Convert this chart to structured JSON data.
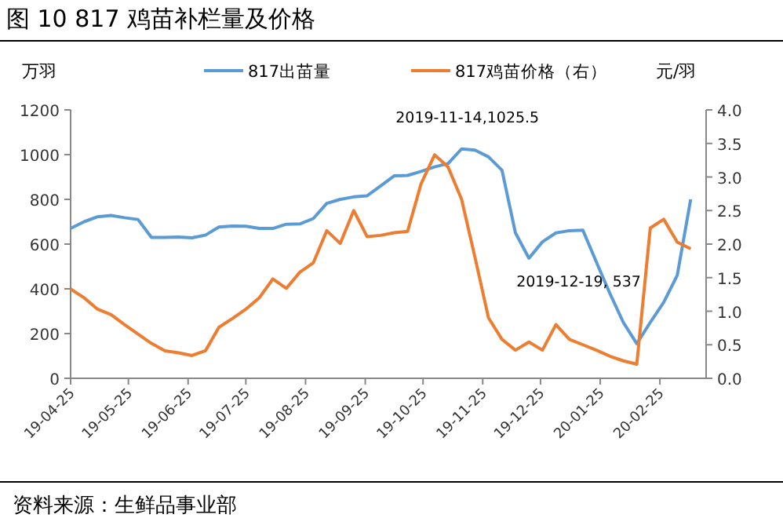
{
  "chart_data": {
    "type": "line",
    "title": "图 10 817 鸡苗补栏量及价格",
    "ylabel": "万羽",
    "y2label": "元/羽",
    "x": [
      "2019-04-25",
      "2019-05-02",
      "2019-05-09",
      "2019-05-16",
      "2019-05-23",
      "2019-05-30",
      "2019-06-06",
      "2019-06-13",
      "2019-06-20",
      "2019-06-27",
      "2019-07-04",
      "2019-07-11",
      "2019-07-18",
      "2019-07-25",
      "2019-08-01",
      "2019-08-08",
      "2019-08-15",
      "2019-08-22",
      "2019-08-29",
      "2019-09-05",
      "2019-09-12",
      "2019-09-19",
      "2019-09-26",
      "2019-10-03",
      "2019-10-10",
      "2019-10-17",
      "2019-10-24",
      "2019-10-31",
      "2019-11-07",
      "2019-11-14",
      "2019-11-21",
      "2019-11-28",
      "2019-12-05",
      "2019-12-12",
      "2019-12-19",
      "2019-12-26",
      "2020-01-02",
      "2020-01-09",
      "2020-01-16",
      "2020-01-23",
      "2020-01-30",
      "2020-02-06",
      "2020-02-13",
      "2020-02-20",
      "2020-02-27",
      "2020-03-05",
      "2020-03-12"
    ],
    "series": [
      {
        "name": "817出苗量",
        "color": "#5b9bd5",
        "values": [
          670,
          700,
          722,
          728,
          718,
          710,
          630,
          630,
          632,
          628,
          640,
          676,
          681,
          680,
          670,
          670,
          689,
          690,
          714,
          782,
          800,
          811,
          816,
          860,
          905,
          907,
          925,
          945,
          960,
          1025.5,
          1020,
          990,
          930,
          650,
          537,
          610,
          650,
          660,
          662,
          520,
          380,
          250,
          155,
          250,
          340,
          460,
          800
        ]
      },
      {
        "name": "817鸡苗价格（右）",
        "color": "#ed7d31",
        "axis": "y2",
        "values": [
          1.33,
          1.2,
          1.03,
          0.95,
          0.8,
          0.66,
          0.52,
          0.41,
          0.38,
          0.34,
          0.41,
          0.76,
          0.89,
          1.03,
          1.2,
          1.48,
          1.34,
          1.58,
          1.72,
          2.2,
          2.01,
          2.5,
          2.11,
          2.13,
          2.17,
          2.19,
          2.9,
          3.33,
          3.15,
          2.67,
          1.8,
          0.9,
          0.58,
          0.42,
          0.54,
          0.42,
          0.8,
          0.58,
          0.5,
          0.42,
          0.33,
          0.26,
          0.21,
          2.24,
          2.37,
          2.03,
          1.93
        ]
      }
    ],
    "xlim": [
      "2019-04-25",
      "2020-03-20"
    ],
    "xticks": [
      {
        "value": "2019-04-25",
        "label": "19-04-25"
      },
      {
        "value": "2019-05-25",
        "label": "19-05-25"
      },
      {
        "value": "2019-06-25",
        "label": "19-06-25"
      },
      {
        "value": "2019-07-25",
        "label": "19-07-25"
      },
      {
        "value": "2019-08-25",
        "label": "19-08-25"
      },
      {
        "value": "2019-09-25",
        "label": "19-09-25"
      },
      {
        "value": "2019-10-25",
        "label": "19-10-25"
      },
      {
        "value": "2019-11-25",
        "label": "19-11-25"
      },
      {
        "value": "2019-12-25",
        "label": "19-12-25"
      },
      {
        "value": "2020-01-25",
        "label": "20-01-25"
      },
      {
        "value": "2020-02-25",
        "label": "20-02-25"
      }
    ],
    "ylim": [
      0,
      1200
    ],
    "yticks": [
      0,
      200,
      400,
      600,
      800,
      1000,
      1200
    ],
    "y2lim": [
      0,
      4
    ],
    "y2ticks": [
      {
        "value": 0,
        "label": "0.0"
      },
      {
        "value": 0.5,
        "label": "0.5"
      },
      {
        "value": 1,
        "label": "1.0"
      },
      {
        "value": 1.5,
        "label": "1.5"
      },
      {
        "value": 2,
        "label": "2.0"
      },
      {
        "value": 2.5,
        "label": "2.5"
      },
      {
        "value": 3,
        "label": "3.0"
      },
      {
        "value": 3.5,
        "label": "3.5"
      },
      {
        "value": 4,
        "label": "4.0"
      }
    ],
    "legend": "top",
    "grid": false,
    "annotations": [
      {
        "text": "2019-11-14,1025.5",
        "x": "2019-11-14",
        "y": 1025.5
      },
      {
        "text": "2019-12-19, 537",
        "x": "2019-12-19",
        "y": 537
      },
      "资料来源：生鲜品事业部"
    ]
  }
}
